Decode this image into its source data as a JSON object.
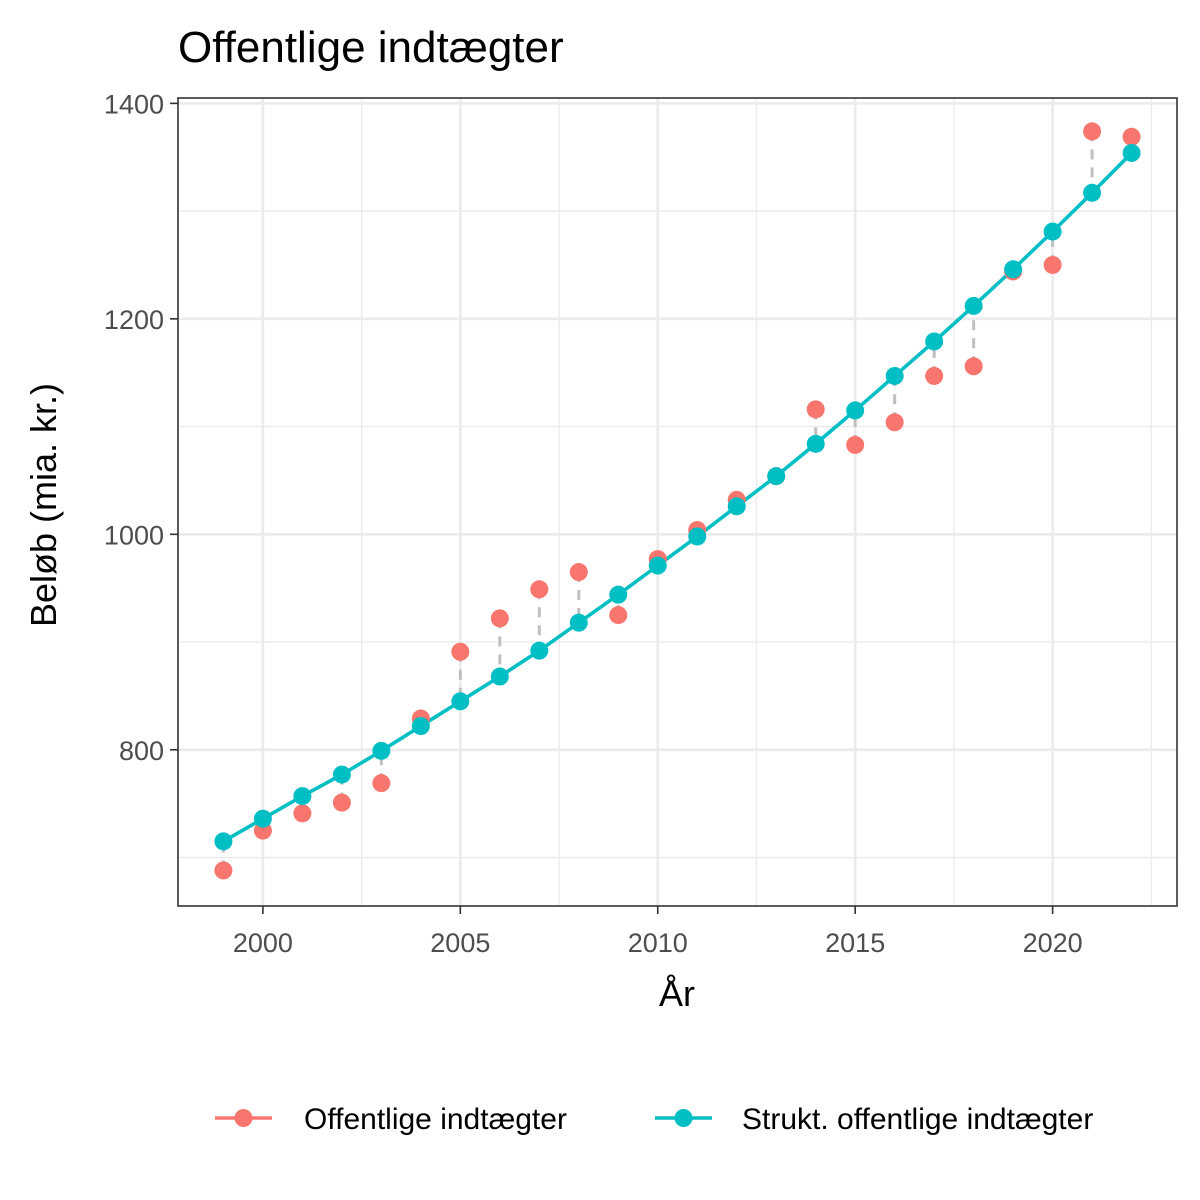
{
  "chart_data": {
    "type": "line",
    "title": "Offentlige indtægter",
    "xlabel": "År",
    "ylabel": "Beløb (mia. kr.)",
    "xlim": [
      1997.85,
      2023.15
    ],
    "ylim": [
      655,
      1405
    ],
    "x_ticks": [
      2000,
      2005,
      2010,
      2015,
      2020
    ],
    "y_ticks": [
      800,
      1000,
      1200,
      1400
    ],
    "x_tick_labels": [
      "2000",
      "2005",
      "2010",
      "2015",
      "2020"
    ],
    "y_tick_labels": [
      "800",
      "1000",
      "1200",
      "1400"
    ],
    "grid": true,
    "legend_position": "bottom",
    "x": [
      1999,
      2000,
      2001,
      2002,
      2003,
      2004,
      2005,
      2006,
      2007,
      2008,
      2009,
      2010,
      2011,
      2012,
      2013,
      2014,
      2015,
      2016,
      2017,
      2018,
      2019,
      2020,
      2021,
      2022
    ],
    "series": [
      {
        "name": "Offentlige indtægter",
        "color": "#F8766D",
        "style": "points",
        "values": [
          688,
          725,
          741,
          751,
          769,
          829,
          891,
          922,
          949,
          965,
          925,
          977,
          1004,
          1032,
          1054,
          1116,
          1083,
          1104,
          1147,
          1156,
          1244,
          1250,
          1374,
          1369
        ]
      },
      {
        "name": "Strukt. offentlige indtægter",
        "color": "#00BFC4",
        "style": "line+points",
        "values": [
          715,
          736,
          757,
          777,
          799,
          822,
          845,
          868,
          892,
          918,
          944,
          971,
          998,
          1026,
          1054,
          1084,
          1115,
          1147,
          1179,
          1212,
          1246,
          1281,
          1317,
          1354
        ]
      }
    ]
  }
}
